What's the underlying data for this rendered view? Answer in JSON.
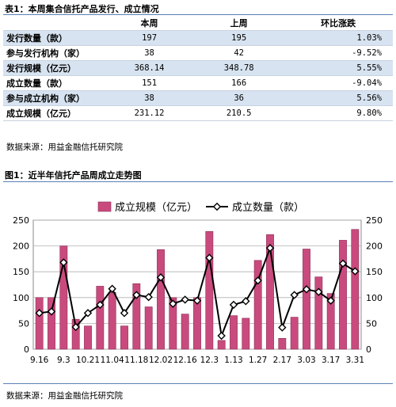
{
  "table": {
    "title": "表1：本周集合信托产品发行、成立情况",
    "headers": [
      "",
      "本周",
      "上周",
      "环比涨跌"
    ],
    "rows": [
      {
        "label": "发行数量（款）",
        "this_week": "197",
        "last_week": "195",
        "change": "1.03%",
        "shaded": true
      },
      {
        "label": "参与发行机构（家）",
        "this_week": "38",
        "last_week": "42",
        "change": "-9.52%",
        "shaded": false
      },
      {
        "label": "发行规模（亿元）",
        "this_week": "368.14",
        "last_week": "348.78",
        "change": "5.55%",
        "shaded": true
      },
      {
        "label": "成立数量（款）",
        "this_week": "151",
        "last_week": "166",
        "change": "-9.04%",
        "shaded": false
      },
      {
        "label": "参与成立机构（家）",
        "this_week": "38",
        "last_week": "36",
        "change": "5.56%",
        "shaded": true
      },
      {
        "label": "成立规模（亿元）",
        "this_week": "231.12",
        "last_week": "210.5",
        "change": "9.80%",
        "shaded": false
      }
    ],
    "source": "数据来源：用益金融信托研究院"
  },
  "chart": {
    "caption": "图1：近半年信托产品周成立走势图",
    "source": "数据来源：用益金融信托研究院"
  },
  "chart_data": {
    "type": "bar",
    "categories": [
      "9.16",
      "",
      "9.3",
      "",
      "10.21",
      "",
      "11.04",
      "",
      "11.18",
      "",
      "12.02",
      "",
      "12.16",
      "",
      "12.3",
      "",
      "1.13",
      "",
      "1.27",
      "",
      "2.17",
      "",
      "3.03",
      "",
      "3.17",
      "",
      "3.31"
    ],
    "series": [
      {
        "name": "成立规模（亿元）",
        "type": "bar",
        "axis": "left",
        "values": [
          100,
          100,
          200,
          58,
          45,
          122,
          110,
          45,
          127,
          82,
          193,
          100,
          68,
          100,
          228,
          17,
          65,
          60,
          172,
          222,
          21,
          62,
          194,
          140,
          108,
          211,
          232
        ]
      },
      {
        "name": "成立数量（款）",
        "type": "line",
        "axis": "right",
        "values": [
          70,
          73,
          168,
          43,
          70,
          86,
          117,
          70,
          105,
          101,
          139,
          88,
          96,
          94,
          177,
          26,
          86,
          93,
          133,
          196,
          42,
          105,
          116,
          111,
          94,
          166,
          151
        ]
      }
    ],
    "y_left": {
      "min": 0,
      "max": 250,
      "ticks": [
        "0",
        "50",
        "100",
        "150",
        "200",
        "250"
      ]
    },
    "y_right": {
      "min": 0,
      "max": 250,
      "ticks": [
        "0",
        "50",
        "100",
        "150",
        "200",
        "250"
      ]
    },
    "legend_position": "top-center",
    "grid": "horizontal",
    "colors": {
      "bar": "#c94b7e",
      "bar_edge": "#8a2a55",
      "line": "#000000",
      "marker_fill": "#ffffff",
      "grid": "#b0b0b0"
    }
  }
}
